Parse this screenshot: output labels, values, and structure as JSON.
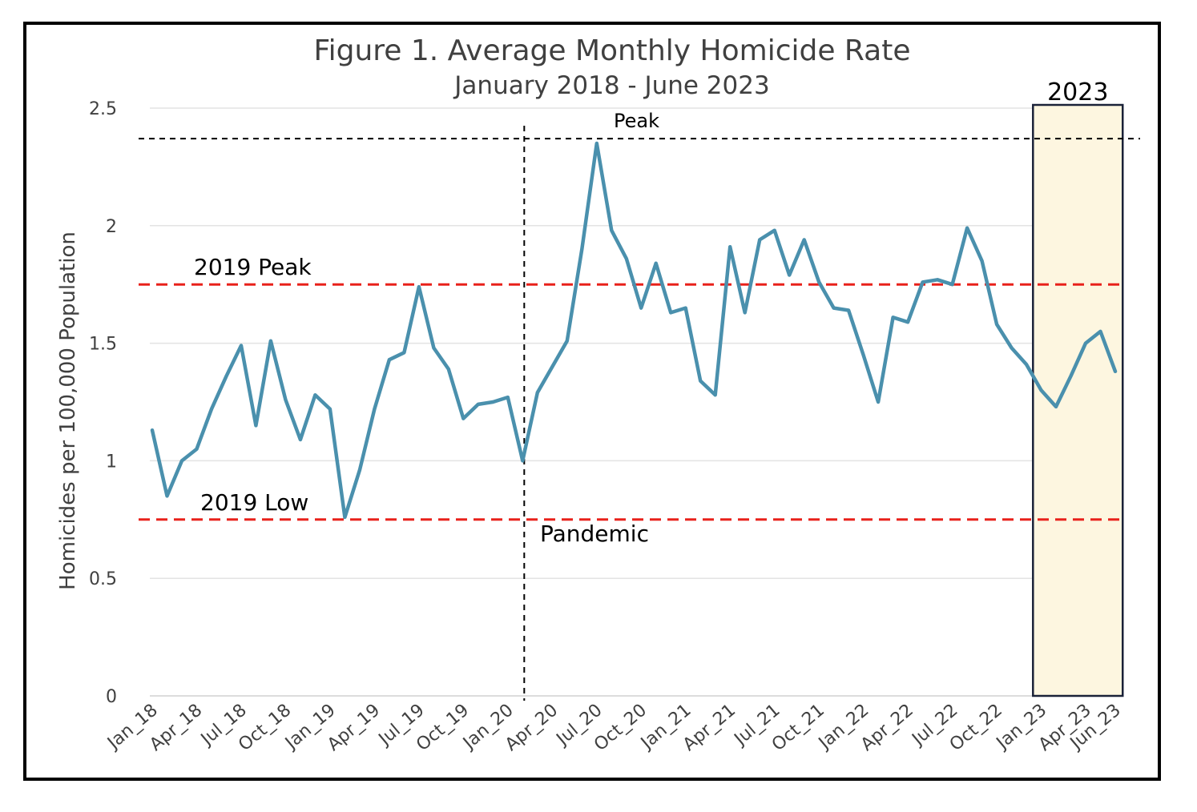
{
  "chart_data": {
    "type": "line",
    "title": "Figure 1. Average Monthly Homicide Rate",
    "subtitle": "January 2018 - June 2023",
    "xlabel": "",
    "ylabel": "Homicides per 100,000 Population",
    "ylim": [
      0,
      2.5
    ],
    "yticks": [
      "0",
      "0.5",
      "1",
      "1.5",
      "2",
      "2.5"
    ],
    "grid": true,
    "x_tick_labels": [
      "Jan_18",
      "Apr_18",
      "Jul_18",
      "Oct_18",
      "Jan_19",
      "Apr_19",
      "Jul_19",
      "Oct_19",
      "Jan_20",
      "Apr_20",
      "Jul_20",
      "Oct_20",
      "Jan_21",
      "Apr_21",
      "Jul_21",
      "Oct_21",
      "Jan_22",
      "Apr_22",
      "Jul_22",
      "Oct_22",
      "Jan_23",
      "Apr_23",
      "Jun_23"
    ],
    "x": [
      "Jan_18",
      "Feb_18",
      "Mar_18",
      "Apr_18",
      "May_18",
      "Jun_18",
      "Jul_18",
      "Aug_18",
      "Sep_18",
      "Oct_18",
      "Nov_18",
      "Dec_18",
      "Jan_19",
      "Feb_19",
      "Mar_19",
      "Apr_19",
      "May_19",
      "Jun_19",
      "Jul_19",
      "Aug_19",
      "Sep_19",
      "Oct_19",
      "Nov_19",
      "Dec_19",
      "Jan_20",
      "Feb_20",
      "Mar_20",
      "Apr_20",
      "May_20",
      "Jun_20",
      "Jul_20",
      "Aug_20",
      "Sep_20",
      "Oct_20",
      "Nov_20",
      "Dec_20",
      "Jan_21",
      "Feb_21",
      "Mar_21",
      "Apr_21",
      "May_21",
      "Jun_21",
      "Jul_21",
      "Aug_21",
      "Sep_21",
      "Oct_21",
      "Nov_21",
      "Dec_21",
      "Jan_22",
      "Feb_22",
      "Mar_22",
      "Apr_22",
      "May_22",
      "Jun_22",
      "Jul_22",
      "Aug_22",
      "Sep_22",
      "Oct_22",
      "Nov_22",
      "Dec_22",
      "Jan_23",
      "Feb_23",
      "Mar_23",
      "Apr_23",
      "May_23",
      "Jun_23"
    ],
    "series": [
      {
        "values": [
          1.13,
          0.85,
          1.0,
          1.05,
          1.22,
          1.36,
          1.49,
          1.15,
          1.51,
          1.26,
          1.09,
          1.28,
          1.22,
          0.76,
          0.96,
          1.22,
          1.43,
          1.46,
          1.74,
          1.48,
          1.39,
          1.18,
          1.24,
          1.25,
          1.27,
          1.0,
          1.29,
          1.4,
          1.51,
          1.9,
          2.35,
          1.98,
          1.86,
          1.65,
          1.84,
          1.63,
          1.65,
          1.34,
          1.28,
          1.91,
          1.63,
          1.94,
          1.98,
          1.79,
          1.94,
          1.76,
          1.65,
          1.64,
          1.45,
          1.25,
          1.61,
          1.59,
          1.76,
          1.77,
          1.75,
          1.99,
          1.85,
          1.58,
          1.48,
          1.41,
          1.3,
          1.23,
          1.36,
          1.5,
          1.55,
          1.38
        ],
        "color": "#4a90ad"
      }
    ],
    "reference_lines": [
      {
        "label": "2019 Peak",
        "value": 1.75,
        "color": "#e8211b",
        "style": "dashed"
      },
      {
        "label": "2019 Low",
        "value": 0.75,
        "color": "#e8211b",
        "style": "dashed"
      },
      {
        "label": "Peak",
        "value": 2.37,
        "color": "#000000",
        "style": "dashed"
      }
    ],
    "vertical_marker": {
      "label": "Pandemic",
      "at": "Feb_20",
      "color": "#000000",
      "style": "dashed"
    },
    "highlight_box": {
      "label": "2023",
      "from": "Jan_23",
      "to": "Jun_23",
      "fill": "#fdf6e0",
      "border": "#1a2238"
    }
  }
}
